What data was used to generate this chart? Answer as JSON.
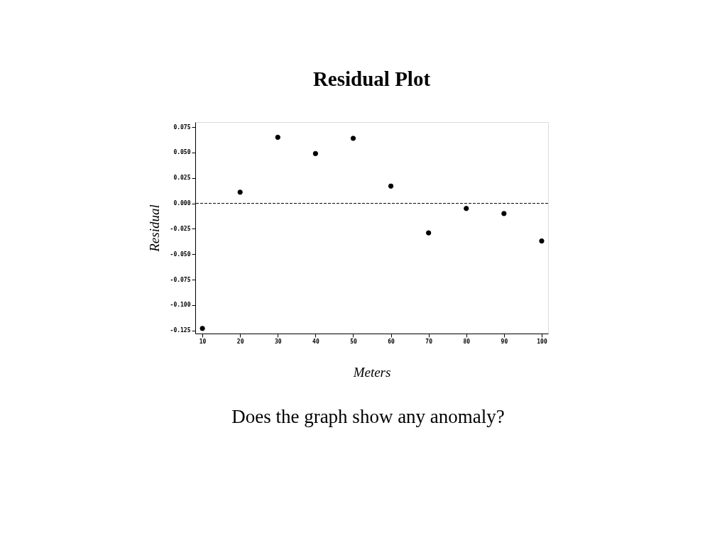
{
  "chart_data": {
    "type": "scatter",
    "title": "Residual Plot",
    "xlabel": "Meters",
    "ylabel": "Residual",
    "x": [
      10,
      20,
      30,
      40,
      50,
      60,
      70,
      80,
      90,
      100
    ],
    "values": [
      -0.123,
      0.011,
      0.065,
      0.049,
      0.064,
      0.017,
      -0.029,
      -0.005,
      -0.01,
      -0.037
    ],
    "color": "#000000",
    "marker": "circle",
    "xlim": [
      8.1,
      101.7
    ],
    "xticks": [
      10,
      20,
      30,
      40,
      50,
      60,
      70,
      80,
      90,
      100
    ],
    "ylim": [
      -0.128,
      0.08
    ],
    "yticks": [
      {
        "value": 0.075,
        "label": "0.075"
      },
      {
        "value": 0.05,
        "label": "0.050"
      },
      {
        "value": 0.025,
        "label": "0.025"
      },
      {
        "value": 0,
        "label": "0.000"
      },
      {
        "value": -0.025,
        "label": "-0.025"
      },
      {
        "value": -0.05,
        "label": "-0.050"
      },
      {
        "value": -0.075,
        "label": "-0.075"
      },
      {
        "value": -0.1,
        "label": "-0.100"
      },
      {
        "value": -0.125,
        "label": "-0.125"
      }
    ],
    "ref_lines": [
      {
        "axis": "y",
        "value": 0,
        "label": null,
        "line_style": "dashed",
        "color": "#000000"
      }
    ],
    "grid": false,
    "annotations": [
      "Does the graph show any anomaly?"
    ]
  }
}
